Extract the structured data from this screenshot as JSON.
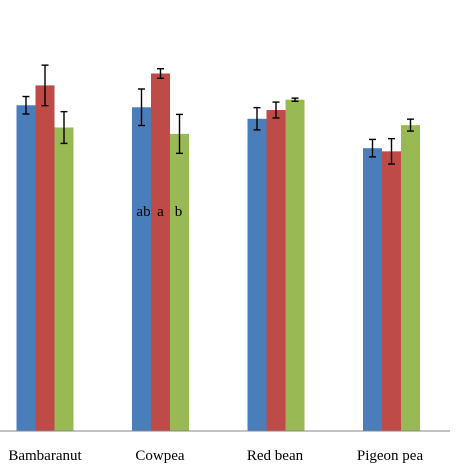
{
  "chart_data": {
    "type": "bar",
    "categories": [
      "Bambaranut",
      "Cowpea",
      "Red bean",
      "Pigeon pea"
    ],
    "series": [
      {
        "color": "#4a7ebb",
        "values": [
          82.0,
          81.5,
          78.6,
          71.2
        ],
        "errors": [
          2.2,
          4.6,
          2.8,
          2.2
        ]
      },
      {
        "color": "#be4b48",
        "values": [
          87.0,
          90.0,
          80.8,
          70.4
        ],
        "errors": [
          5.1,
          1.2,
          2.0,
          3.2
        ]
      },
      {
        "color": "#98b954",
        "values": [
          76.4,
          74.8,
          83.4,
          77.0
        ],
        "errors": [
          4.0,
          4.9,
          0.4,
          1.5
        ]
      }
    ],
    "annotations": [
      {
        "category": "Cowpea",
        "series": 0,
        "text": "ab"
      },
      {
        "category": "Cowpea",
        "series": 1,
        "text": "a"
      },
      {
        "category": "Cowpea",
        "series": 2,
        "text": "b"
      }
    ],
    "ylim": [
      0,
      108.5
    ],
    "grid": false,
    "legend": "none"
  }
}
